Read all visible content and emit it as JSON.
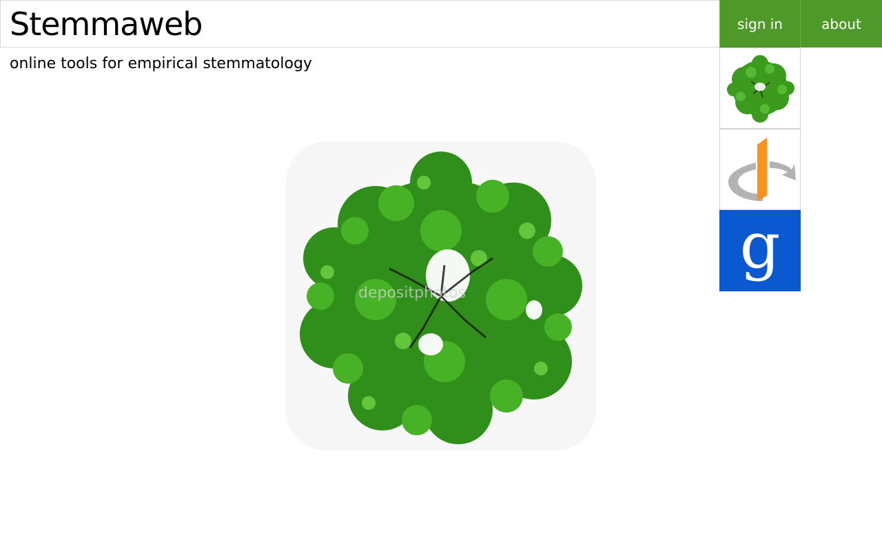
{
  "header": {
    "site_title": "Stemmaweb",
    "tagline": "online tools for empirical stemmatology"
  },
  "nav": {
    "sign_in_label": "sign in",
    "about_label": "about"
  },
  "login_options": [
    {
      "name": "stemmaweb-account",
      "icon": "tree-icon"
    },
    {
      "name": "openid",
      "icon": "openid-icon"
    },
    {
      "name": "google",
      "icon": "google-g-icon",
      "glyph": "g"
    }
  ],
  "hero": {
    "image": "tree-top-view",
    "watermark": "depositphotos"
  },
  "colors": {
    "nav_green": "#4f982a",
    "google_blue": "#0b59d1",
    "openid_orange": "#f7931e",
    "openid_gray": "#b3b3b3",
    "tree_green": "#3c9a1e"
  }
}
